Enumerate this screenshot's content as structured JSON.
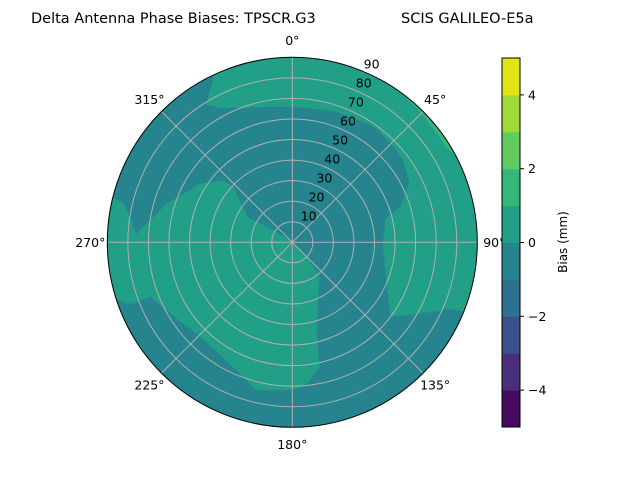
{
  "chart_data": {
    "type": "polar-contour",
    "title_left": "Delta Antenna Phase Biases: TPSCR.G3",
    "title_right": "SCIS GALILEO-E5a",
    "angular_direction": "clockwise",
    "zero_location": "top",
    "radial_range": [
      0,
      90
    ],
    "radial_ticks": [
      10,
      20,
      30,
      40,
      50,
      60,
      70,
      80,
      90
    ],
    "angular_ticks": [
      0,
      45,
      90,
      135,
      180,
      225,
      270,
      315
    ],
    "angular_tick_labels": [
      "0°",
      "45°",
      "90°",
      "135°",
      "180°",
      "225°",
      "270°",
      "315°"
    ],
    "grid": true,
    "colorbar": {
      "label": "Bias (mm)",
      "range": [
        -5,
        5
      ],
      "levels": [
        -5,
        -4,
        -3,
        -2,
        -1,
        0,
        1,
        2,
        3,
        4,
        5
      ],
      "level_colors": [
        "#450c5e",
        "#472f7d",
        "#3b518b",
        "#2c718e",
        "#25848e",
        "#21a087",
        "#35b779",
        "#62cb60",
        "#a0da39",
        "#e2e418"
      ],
      "ticks": [
        -4,
        -2,
        0,
        2,
        4
      ],
      "tick_labels": [
        "−4",
        "−2",
        "0",
        "2",
        "4"
      ]
    },
    "background_level": [
      -1,
      0
    ],
    "regions": [
      {
        "level": [
          0,
          1
        ],
        "points_az_zen": [
          [
            -25,
            90
          ],
          [
            -32,
            79
          ],
          [
            -28,
            74
          ],
          [
            0,
            66
          ],
          [
            17,
            67
          ],
          [
            35,
            69
          ],
          [
            46.5,
            68
          ],
          [
            53,
            67
          ],
          [
            63,
            64
          ],
          [
            72,
            55
          ],
          [
            75.5,
            47
          ],
          [
            90,
            44
          ],
          [
            113.5,
            50
          ],
          [
            127,
            60
          ],
          [
            120,
            70
          ],
          [
            113,
            83
          ],
          [
            112,
            90
          ],
          [
            90,
            90
          ],
          [
            60,
            90
          ],
          [
            30,
            90
          ],
          [
            0,
            90
          ]
        ]
      },
      {
        "level": [
          0,
          1
        ],
        "points_az_zen": [
          [
            284,
            90
          ],
          [
            283,
            84
          ],
          [
            273,
            76
          ],
          [
            287,
            64
          ],
          [
            302.6,
            53
          ],
          [
            312,
            45
          ],
          [
            313,
            39
          ],
          [
            299,
            25
          ],
          [
            303,
            11
          ],
          [
            0,
            0
          ],
          [
            135,
            10
          ],
          [
            141,
            21
          ],
          [
            157,
            32
          ],
          [
            165,
            46
          ],
          [
            167.5,
            62
          ],
          [
            174,
            69
          ],
          [
            180,
            72
          ],
          [
            193.6,
            74
          ],
          [
            203.5,
            68
          ],
          [
            224,
            64
          ],
          [
            238,
            68
          ],
          [
            249,
            74
          ],
          [
            249,
            84
          ],
          [
            252,
            90
          ]
        ]
      },
      {
        "level": [
          1,
          2
        ],
        "points_az_zen": [
          [
            36,
            90
          ],
          [
            44,
            89
          ],
          [
            52,
            88
          ],
          [
            58,
            88
          ],
          [
            62,
            90
          ]
        ]
      }
    ]
  }
}
